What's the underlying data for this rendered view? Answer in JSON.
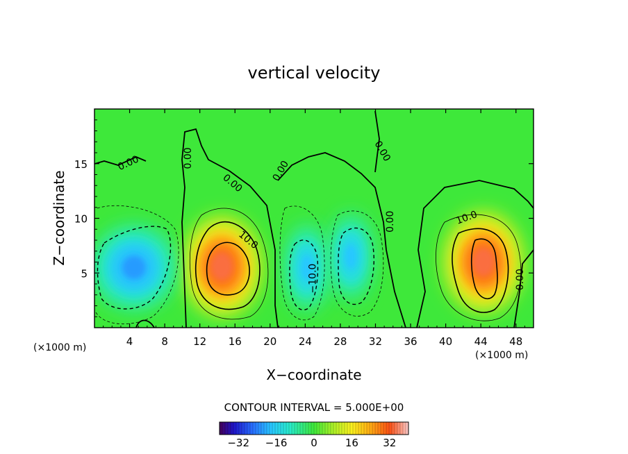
{
  "chart_data": {
    "type": "heatmap",
    "title": "vertical velocity",
    "xlabel": "X−coordinate",
    "ylabel": "Z−coordinate",
    "x_unit_label": "(×1000 m)",
    "z_unit_label": "(×1000 m)",
    "xlim": [
      0,
      50
    ],
    "ylim": [
      0,
      20
    ],
    "x_ticks": [
      4,
      8,
      12,
      16,
      20,
      24,
      28,
      32,
      36,
      40,
      44,
      48
    ],
    "y_ticks": [
      5,
      10,
      15
    ],
    "contour_interval_text": "CONTOUR INTERVAL = 5.000E+00",
    "contour_interval": 5,
    "colorbar": {
      "range": [
        -40,
        40
      ],
      "ticks": [
        -32,
        -16,
        0,
        16,
        32
      ],
      "tick_labels": [
        "−32",
        "−16",
        "0",
        "16",
        "32"
      ]
    },
    "contour_labels": [
      {
        "text": "0.00",
        "x": 4.0,
        "z": 14.8,
        "angle": -25
      },
      {
        "text": "0.00",
        "x": 11.0,
        "z": 15.5,
        "angle": -90
      },
      {
        "text": "0.00",
        "x": 15.5,
        "z": 13.0,
        "angle": 40
      },
      {
        "text": "0.00",
        "x": 21.5,
        "z": 14.2,
        "angle": -60
      },
      {
        "text": "0.00",
        "x": 32.5,
        "z": 16.0,
        "angle": 60
      },
      {
        "text": "0.00",
        "x": 34.0,
        "z": 9.7,
        "angle": -90
      },
      {
        "text": "0.00",
        "x": 48.8,
        "z": 4.4,
        "angle": -90
      },
      {
        "text": "10.0",
        "x": 17.3,
        "z": 7.8,
        "angle": 40
      },
      {
        "text": "−10.0",
        "x": 25.2,
        "z": 4.5,
        "angle": -90
      },
      {
        "text": "10.0",
        "x": 42.5,
        "z": 9.8,
        "angle": -20
      }
    ],
    "field_features": [
      {
        "kind": "updraft",
        "x": 14.5,
        "z": 5.6,
        "peak": 34
      },
      {
        "kind": "updraft",
        "x": 44.3,
        "z": 6.0,
        "peak": 34
      },
      {
        "kind": "downdraft",
        "x": 4.5,
        "z": 5.5,
        "peak": -22
      },
      {
        "kind": "downdraft",
        "x": 24.2,
        "z": 5.5,
        "peak": -18
      },
      {
        "kind": "downdraft",
        "x": 29.2,
        "z": 6.5,
        "peak": -18
      }
    ]
  }
}
